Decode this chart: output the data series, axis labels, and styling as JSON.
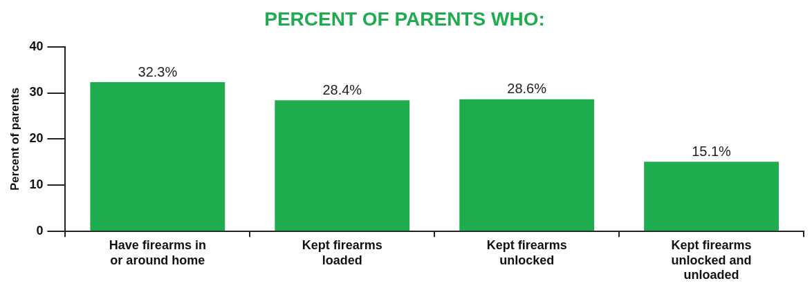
{
  "chart_data": {
    "type": "bar",
    "title": "PERCENT OF PARENTS WHO:",
    "ylabel": "Percent of parents",
    "categories": [
      "Have firearms in or around home",
      "Kept firearms loaded",
      "Kept firearms unlocked",
      "Kept firearms unlocked and unloaded"
    ],
    "values": [
      32.3,
      28.4,
      28.6,
      15.1
    ],
    "value_labels": [
      "32.3%",
      "28.4%",
      "28.6%",
      "15.1%"
    ],
    "color": "#1fac4f",
    "ylim": [
      0,
      40
    ],
    "yticks": [
      0,
      10,
      20,
      30,
      40
    ],
    "grid": false,
    "legend": false
  }
}
